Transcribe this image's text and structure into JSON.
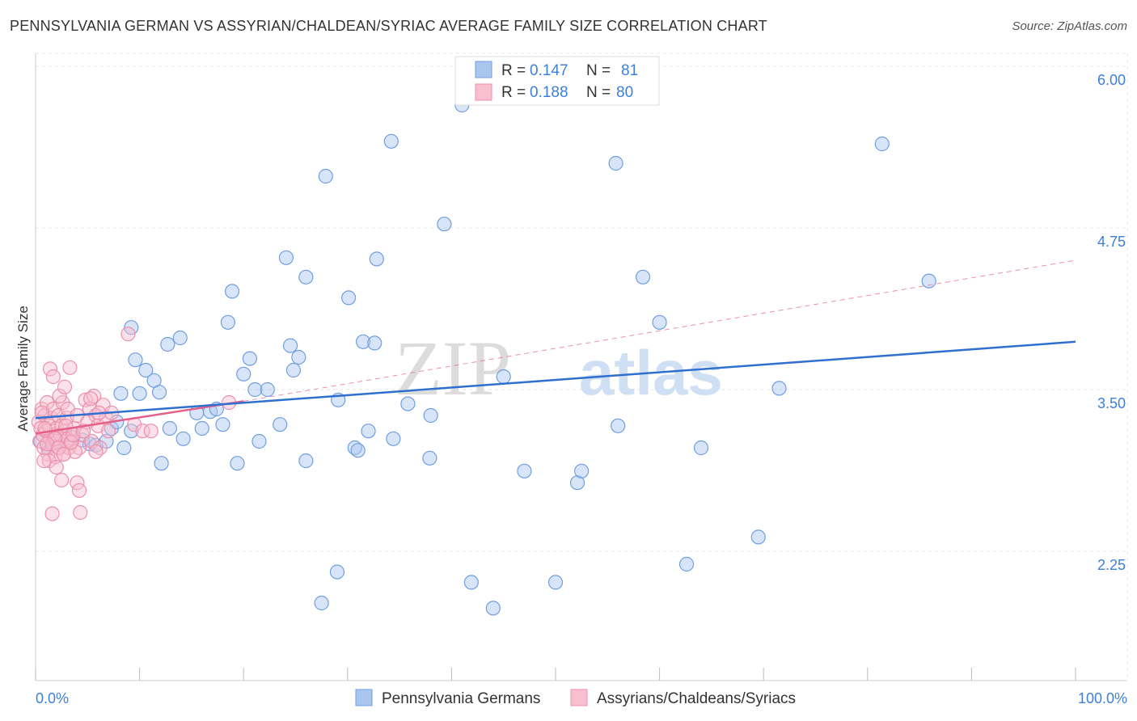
{
  "chart_data": {
    "type": "scatter",
    "title": "PENNSYLVANIA GERMAN VS ASSYRIAN/CHALDEAN/SYRIAC AVERAGE FAMILY SIZE CORRELATION CHART",
    "source": "Source: ZipAtlas.com",
    "watermark": {
      "zip": "ZIP",
      "atlas": "atlas"
    },
    "xlabel": "",
    "ylabel": "Average Family Size",
    "xlim": [
      0,
      100
    ],
    "ylim": [
      1.25,
      6.1
    ],
    "x_tick_labels": {
      "left": "0.0%",
      "right": "100.0%"
    },
    "y_ticks": [
      {
        "value": 2.25,
        "label": "2.25"
      },
      {
        "value": 3.5,
        "label": "3.50"
      },
      {
        "value": 4.75,
        "label": "4.75"
      },
      {
        "value": 6.0,
        "label": "6.00"
      }
    ],
    "grid": true,
    "legend_position": "top-center",
    "series": [
      {
        "name": "Pennsylvania Germans",
        "color": "#6f9fe0",
        "fill": "#a9c6ef",
        "line_color": "#2f6fcf",
        "r_label": "R = ",
        "r_value": "0.147",
        "n_label": "N = ",
        "n_value": "81",
        "trend": {
          "x0": 0,
          "y0": 3.28,
          "x1": 100,
          "y1": 3.87
        },
        "points": [
          [
            0.5,
            3.1
          ],
          [
            1.2,
            3.05
          ],
          [
            1.8,
            3.12
          ],
          [
            2.4,
            3.08
          ],
          [
            3.0,
            3.1
          ],
          [
            3.6,
            3.13
          ],
          [
            4.5,
            3.11
          ],
          [
            5.2,
            3.08
          ],
          [
            5.8,
            3.07
          ],
          [
            6.8,
            3.1
          ],
          [
            7.3,
            3.2
          ],
          [
            7.8,
            3.25
          ],
          [
            8.5,
            3.05
          ],
          [
            9.2,
            3.18
          ],
          [
            8.2,
            3.47
          ],
          [
            9.6,
            3.73
          ],
          [
            10.0,
            3.47
          ],
          [
            10.6,
            3.65
          ],
          [
            9.2,
            3.98
          ],
          [
            11.4,
            3.57
          ],
          [
            11.9,
            3.48
          ],
          [
            12.7,
            3.85
          ],
          [
            12.1,
            2.93
          ],
          [
            12.9,
            3.2
          ],
          [
            13.9,
            3.9
          ],
          [
            14.2,
            3.12
          ],
          [
            15.5,
            3.32
          ],
          [
            16.8,
            3.33
          ],
          [
            17.4,
            3.35
          ],
          [
            16.0,
            3.2
          ],
          [
            18.0,
            3.23
          ],
          [
            18.5,
            4.02
          ],
          [
            18.9,
            4.26
          ],
          [
            19.4,
            2.93
          ],
          [
            20.0,
            3.62
          ],
          [
            20.6,
            3.74
          ],
          [
            21.1,
            3.5
          ],
          [
            21.5,
            3.1
          ],
          [
            22.3,
            3.5
          ],
          [
            23.5,
            3.23
          ],
          [
            24.1,
            4.52
          ],
          [
            24.5,
            3.84
          ],
          [
            24.8,
            3.65
          ],
          [
            25.3,
            3.75
          ],
          [
            26.0,
            4.37
          ],
          [
            26.0,
            2.95
          ],
          [
            27.5,
            1.85
          ],
          [
            27.9,
            5.15
          ],
          [
            29.0,
            2.09
          ],
          [
            29.1,
            3.42
          ],
          [
            30.1,
            4.21
          ],
          [
            30.7,
            3.05
          ],
          [
            31.0,
            3.03
          ],
          [
            31.5,
            3.87
          ],
          [
            32.0,
            3.18
          ],
          [
            32.6,
            3.86
          ],
          [
            32.8,
            4.51
          ],
          [
            34.2,
            5.42
          ],
          [
            34.4,
            3.12
          ],
          [
            35.8,
            3.39
          ],
          [
            37.9,
            2.97
          ],
          [
            39.3,
            4.78
          ],
          [
            41.0,
            5.7
          ],
          [
            41.9,
            2.01
          ],
          [
            44.0,
            1.81
          ],
          [
            47.0,
            2.87
          ],
          [
            50.0,
            2.01
          ],
          [
            52.1,
            2.78
          ],
          [
            52.5,
            2.87
          ],
          [
            55.8,
            5.25
          ],
          [
            56.0,
            3.22
          ],
          [
            58.4,
            4.37
          ],
          [
            62.6,
            2.15
          ],
          [
            69.5,
            2.36
          ],
          [
            71.5,
            3.51
          ],
          [
            81.4,
            5.4
          ],
          [
            85.9,
            4.34
          ],
          [
            60.0,
            4.02
          ],
          [
            45.0,
            3.6
          ],
          [
            38.0,
            3.3
          ],
          [
            64.0,
            3.05
          ]
        ]
      },
      {
        "name": "Assyrians/Chaldeans/Syriacs",
        "color": "#ec8fab",
        "fill": "#f7bfd0",
        "line_color": "#e4608a",
        "r_label": "R = ",
        "r_value": "0.188",
        "n_label": "N = ",
        "n_value": "80",
        "trend": {
          "x0": 0,
          "y0": 3.16,
          "x1": 20,
          "y1": 3.41
        },
        "trend_dashed": {
          "x0": 20,
          "y0": 3.41,
          "x1": 100,
          "y1": 4.5
        },
        "points": [
          [
            0.3,
            3.25
          ],
          [
            0.4,
            3.1
          ],
          [
            0.5,
            3.2
          ],
          [
            0.6,
            3.35
          ],
          [
            0.7,
            3.15
          ],
          [
            0.8,
            3.05
          ],
          [
            0.9,
            3.3
          ],
          [
            1.0,
            3.18
          ],
          [
            1.1,
            3.4
          ],
          [
            1.2,
            3.0
          ],
          [
            1.3,
            3.22
          ],
          [
            1.4,
            3.12
          ],
          [
            1.5,
            3.28
          ],
          [
            1.6,
            3.08
          ],
          [
            1.7,
            3.35
          ],
          [
            1.8,
            3.15
          ],
          [
            1.9,
            2.98
          ],
          [
            2.0,
            3.2
          ],
          [
            2.1,
            3.1
          ],
          [
            2.2,
            3.3
          ],
          [
            2.3,
            3.05
          ],
          [
            2.4,
            3.15
          ],
          [
            2.5,
            3.22
          ],
          [
            2.6,
            3.4
          ],
          [
            2.7,
            3.0
          ],
          [
            2.8,
            3.18
          ],
          [
            2.9,
            3.1
          ],
          [
            3.0,
            3.28
          ],
          [
            3.1,
            3.12
          ],
          [
            3.2,
            3.05
          ],
          [
            1.4,
            3.66
          ],
          [
            1.7,
            3.6
          ],
          [
            2.3,
            3.45
          ],
          [
            2.8,
            3.52
          ],
          [
            3.1,
            3.35
          ],
          [
            3.5,
            3.1
          ],
          [
            3.7,
            3.2
          ],
          [
            4.0,
            3.3
          ],
          [
            4.2,
            3.05
          ],
          [
            4.5,
            3.15
          ],
          [
            4.8,
            3.42
          ],
          [
            5.0,
            3.25
          ],
          [
            5.2,
            3.35
          ],
          [
            5.4,
            3.1
          ],
          [
            5.6,
            3.45
          ],
          [
            5.8,
            3.3
          ],
          [
            6.0,
            3.22
          ],
          [
            6.2,
            3.05
          ],
          [
            6.5,
            3.38
          ],
          [
            6.8,
            3.28
          ],
          [
            3.3,
            3.67
          ],
          [
            4.0,
            2.78
          ],
          [
            4.2,
            2.72
          ],
          [
            4.3,
            2.55
          ],
          [
            1.6,
            2.54
          ],
          [
            2.5,
            2.8
          ],
          [
            3.8,
            3.02
          ],
          [
            1.3,
            2.95
          ],
          [
            2.0,
            2.9
          ],
          [
            0.8,
            2.95
          ],
          [
            8.9,
            3.93
          ],
          [
            9.5,
            3.23
          ],
          [
            10.3,
            3.18
          ],
          [
            11.1,
            3.18
          ],
          [
            18.6,
            3.4
          ],
          [
            7.3,
            3.32
          ],
          [
            7.0,
            3.18
          ],
          [
            5.8,
            3.02
          ],
          [
            6.1,
            3.32
          ],
          [
            3.4,
            3.09
          ],
          [
            2.9,
            3.22
          ],
          [
            1.9,
            3.12
          ],
          [
            0.6,
            3.32
          ],
          [
            0.9,
            3.2
          ],
          [
            1.1,
            3.08
          ],
          [
            2.2,
            3.05
          ],
          [
            3.6,
            3.15
          ],
          [
            4.6,
            3.18
          ],
          [
            5.3,
            3.43
          ],
          [
            2.7,
            3.0
          ]
        ]
      }
    ]
  }
}
